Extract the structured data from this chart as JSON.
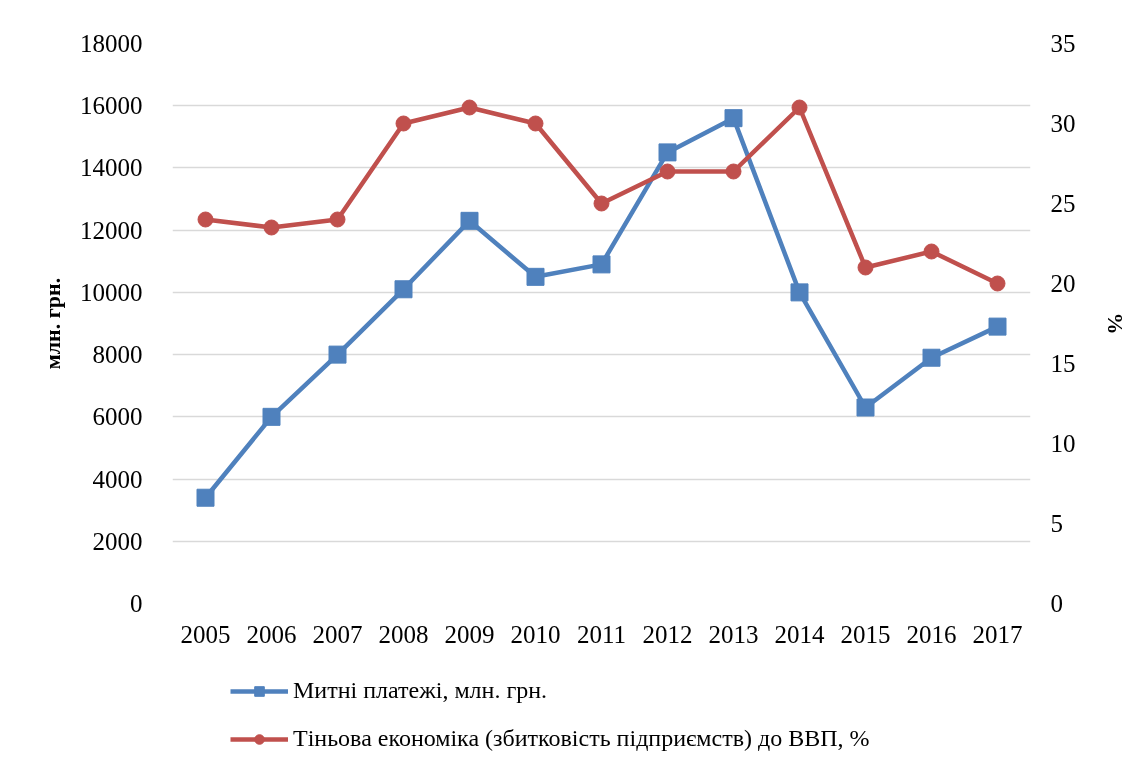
{
  "chart_data": {
    "type": "line",
    "categories": [
      "2005",
      "2006",
      "2007",
      "2008",
      "2009",
      "2010",
      "2011",
      "2012",
      "2013",
      "2014",
      "2015",
      "2016",
      "2017"
    ],
    "ylabel": "млн. грн.",
    "y2label": "%",
    "ylim": [
      0,
      18000
    ],
    "yticks": [
      0,
      2000,
      4000,
      6000,
      8000,
      10000,
      12000,
      14000,
      16000,
      18000
    ],
    "y2lim": [
      0,
      35
    ],
    "y2ticks": [
      0,
      5,
      10,
      15,
      20,
      25,
      30,
      35
    ],
    "grid": "y",
    "legend": "bottom",
    "series": [
      {
        "name": "Митні платежі, млн. грн.",
        "color": "#4f81bd",
        "marker": "square",
        "values": [
          3400,
          6000,
          8000,
          10100,
          12300,
          10500,
          10900,
          14500,
          15600,
          10000,
          6300,
          7900,
          8900
        ]
      },
      {
        "name": "Тіньова економіка (збитковість підприємств) до ВВП, %",
        "color": "#c0504d",
        "marker": "circle",
        "axis": "y2",
        "values": [
          24,
          23.5,
          24,
          30,
          31,
          30,
          25,
          27,
          27,
          31,
          21,
          22,
          20
        ]
      }
    ]
  }
}
